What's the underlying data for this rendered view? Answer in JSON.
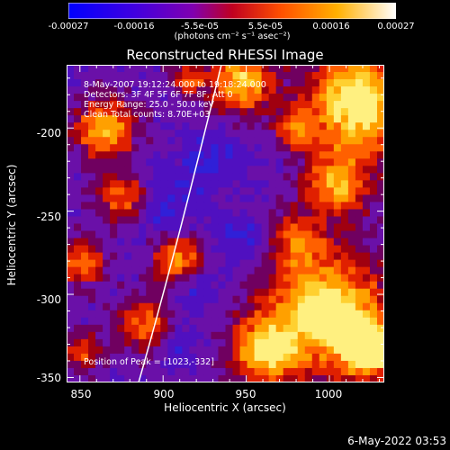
{
  "colorbar": {
    "ticks": [
      "-0.00027",
      "-0.00016",
      "-5.5e-05",
      "5.5e-05",
      "0.00016",
      "0.00027"
    ],
    "units": "(photons cm⁻² s⁻¹ asec⁻²)",
    "gradient_colors": [
      "#0000ff",
      "#8000c0",
      "#c00000",
      "#ff6000",
      "#ffd000",
      "#ffffff"
    ]
  },
  "plot": {
    "title": "Reconstructed RHESSI Image",
    "info_lines": [
      "8-May-2007 19:12:24.000 to 19:18:24.000",
      "Detectors: 3F 4F 5F 6F 7F 8F, Att 0",
      "Energy Range: 25.0 - 50.0 keV",
      "Clean    Total counts: 8.70E+03"
    ],
    "peak_label": "Position of Peak = [1023,-332]",
    "xlabel": "Heliocentric X (arcsec)",
    "ylabel": "Heliocentric Y (arcsec)",
    "x_ticks": [
      "850",
      "900",
      "950",
      "1000"
    ],
    "y_ticks": [
      "-200",
      "-250",
      "-300",
      "-350"
    ],
    "x_range": [
      842,
      1033
    ],
    "y_range": [
      -353,
      -162
    ]
  },
  "timestamp": "6-May-2022 03:53"
}
